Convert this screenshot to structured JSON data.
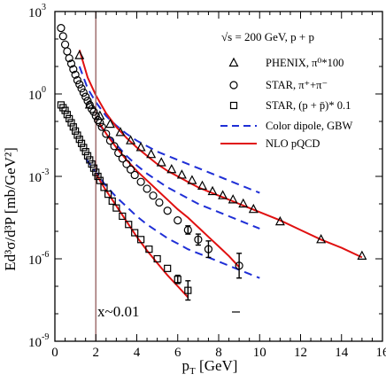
{
  "chart_data": {
    "type": "scatter",
    "xlabel_main": "p",
    "xlabel_sub": "T",
    "xlabel_unit": " [GeV]",
    "ylabel": "Ed³σ/d³P [mb/GeV²]",
    "xlim": [
      0,
      16
    ],
    "ylim_log10": [
      -9,
      3
    ],
    "x_ticks": [
      "0",
      "2",
      "4",
      "6",
      "8",
      "10",
      "12",
      "14",
      "16"
    ],
    "y_ticks": [
      {
        "exp": -9,
        "base": "10",
        "sup": "-9"
      },
      {
        "exp": -6,
        "base": "10",
        "sup": "-6"
      },
      {
        "exp": -3,
        "base": "10",
        "sup": "-3"
      },
      {
        "exp": 0,
        "base": "10",
        "sup": "0"
      },
      {
        "exp": 3,
        "base": "10",
        "sup": "3"
      }
    ],
    "scale": "log-y",
    "annotations": {
      "energy": "√s = 200 GeV, p + p",
      "xregion": "x~0.01",
      "vline_x": 2
    },
    "colors": {
      "dipole": "#1f2fd6",
      "nlo": "#e01010",
      "vline": "#a07070",
      "axis": "#000000"
    },
    "legend": [
      {
        "marker": "triangle",
        "label": "PHENIX, π⁰*100"
      },
      {
        "marker": "circle",
        "label": "STAR, π⁺+π⁻"
      },
      {
        "marker": "square",
        "label": "STAR, (p + p̄)* 0.1"
      },
      {
        "line": "dashed-blue",
        "label": "Color dipole, GBW"
      },
      {
        "line": "solid-red",
        "label": "NLO pQCD"
      }
    ],
    "series": [
      {
        "name": "PHENIX, π⁰*100",
        "marker": "triangle",
        "x": [
          1.2,
          1.7,
          2.2,
          2.7,
          3.2,
          3.7,
          4.2,
          4.7,
          5.2,
          5.7,
          6.2,
          6.7,
          7.2,
          7.7,
          8.2,
          8.7,
          9.2,
          9.7,
          11.0,
          13.0,
          15.0
        ],
        "y": [
          1.4,
          -0.4,
          -0.8,
          -1.1,
          -1.4,
          -1.7,
          -1.95,
          -2.2,
          -2.5,
          -2.75,
          -2.95,
          -3.15,
          -3.35,
          -3.55,
          -3.7,
          -3.85,
          -4.0,
          -4.2,
          -4.65,
          -5.3,
          -5.9
        ],
        "yerr": []
      },
      {
        "name": "STAR, π⁺+π⁻",
        "marker": "circle",
        "x": [
          0.3,
          0.4,
          0.5,
          0.6,
          0.7,
          0.8,
          0.9,
          1.0,
          1.1,
          1.2,
          1.3,
          1.4,
          1.5,
          1.6,
          1.7,
          1.8,
          1.9,
          2.0,
          2.1,
          2.2,
          2.3,
          2.5,
          2.7,
          2.9,
          3.1,
          3.3,
          3.5,
          3.7,
          3.9,
          4.2,
          4.5,
          4.8,
          5.1,
          5.5,
          6.0,
          6.5,
          7.0,
          7.5,
          9.0
        ],
        "y": [
          2.4,
          2.1,
          1.8,
          1.55,
          1.3,
          1.1,
          0.9,
          0.7,
          0.5,
          0.35,
          0.2,
          0.05,
          -0.1,
          -0.25,
          -0.4,
          -0.55,
          -0.65,
          -0.8,
          -0.95,
          -1.05,
          -1.2,
          -1.45,
          -1.7,
          -1.9,
          -2.15,
          -2.35,
          -2.55,
          -2.75,
          -2.95,
          -3.2,
          -3.45,
          -3.7,
          -3.95,
          -4.25,
          -4.6,
          -4.95,
          -5.3,
          -5.65,
          -6.25
        ],
        "yerr": [
          0,
          0,
          0,
          0,
          0,
          0,
          0,
          0,
          0,
          0,
          0,
          0,
          0,
          0,
          0,
          0,
          0,
          0,
          0,
          0,
          0,
          0,
          0,
          0,
          0,
          0,
          0,
          0,
          0,
          0,
          0,
          0,
          0,
          0,
          0,
          0.15,
          0.2,
          0.3,
          0.45
        ]
      },
      {
        "name": "STAR, (p + p̄)* 0.1",
        "marker": "square",
        "x": [
          0.3,
          0.4,
          0.5,
          0.6,
          0.7,
          0.8,
          0.9,
          1.0,
          1.1,
          1.2,
          1.3,
          1.4,
          1.5,
          1.6,
          1.7,
          1.8,
          1.9,
          2.0,
          2.1,
          2.2,
          2.4,
          2.6,
          2.8,
          3.0,
          3.3,
          3.6,
          3.9,
          4.2,
          4.6,
          5.0,
          5.5,
          6.0,
          6.5
        ],
        "y": [
          -0.4,
          -0.5,
          -0.6,
          -0.75,
          -0.9,
          -1.05,
          -1.2,
          -1.35,
          -1.5,
          -1.65,
          -1.8,
          -1.95,
          -2.1,
          -2.25,
          -2.4,
          -2.55,
          -2.7,
          -2.85,
          -3.0,
          -3.15,
          -3.4,
          -3.65,
          -3.9,
          -4.15,
          -4.45,
          -4.75,
          -5.05,
          -5.3,
          -5.65,
          -6.0,
          -6.35,
          -6.75,
          -7.15
        ],
        "yerr": [
          0,
          0,
          0,
          0,
          0,
          0,
          0,
          0,
          0,
          0,
          0,
          0,
          0,
          0,
          0,
          0,
          0,
          0,
          0,
          0,
          0,
          0,
          0,
          0,
          0,
          0,
          0,
          0,
          0,
          0,
          0,
          0.15,
          0.35
        ]
      }
    ],
    "curves": {
      "nlo": [
        {
          "x": [
            1.2,
            1.6,
            2.0,
            2.5,
            3.0,
            3.5,
            4.0,
            4.5,
            5.0,
            5.5,
            6.0,
            6.5,
            7.0,
            7.5,
            8.0,
            8.5,
            9.0,
            9.5,
            10,
            11,
            12,
            13,
            14,
            15
          ],
          "y": [
            1.6,
            0.6,
            -0.05,
            -0.7,
            -1.2,
            -1.6,
            -1.95,
            -2.25,
            -2.55,
            -2.8,
            -3.0,
            -3.2,
            -3.4,
            -3.55,
            -3.7,
            -3.85,
            -4.0,
            -4.15,
            -4.3,
            -4.6,
            -4.95,
            -5.3,
            -5.6,
            -5.95
          ]
        },
        {
          "x": [
            2.2,
            2.6,
            3.0,
            3.5,
            4.0,
            4.5,
            5.0,
            5.5,
            6.0,
            6.5,
            7.0,
            7.5,
            8.0,
            8.5,
            9.0
          ],
          "y": [
            -1.1,
            -1.55,
            -1.95,
            -2.4,
            -2.8,
            -3.15,
            -3.5,
            -3.85,
            -4.2,
            -4.5,
            -4.85,
            -5.2,
            -5.55,
            -5.9,
            -6.3
          ]
        },
        {
          "x": [
            2.0,
            2.4,
            2.8,
            3.2,
            3.6,
            4.0,
            4.5,
            5.0,
            5.5,
            6.0,
            6.5
          ],
          "y": [
            -2.9,
            -3.4,
            -3.85,
            -4.3,
            -4.75,
            -5.2,
            -5.7,
            -6.15,
            -6.6,
            -7.0,
            -7.4
          ]
        }
      ],
      "dipole": [
        {
          "x": [
            1.2,
            1.6,
            2.0,
            2.5,
            3.0,
            3.5,
            4.0,
            4.5,
            5.0,
            5.5,
            6.0,
            6.5,
            7.0,
            7.5,
            8.0,
            8.5,
            9.0,
            9.5,
            10
          ],
          "y": [
            1.0,
            0.2,
            -0.3,
            -0.8,
            -1.15,
            -1.45,
            -1.7,
            -1.9,
            -2.1,
            -2.25,
            -2.4,
            -2.55,
            -2.7,
            -2.85,
            -3.0,
            -3.15,
            -3.3,
            -3.45,
            -3.6
          ]
        },
        {
          "x": [
            2.2,
            2.6,
            3.0,
            3.5,
            4.0,
            4.5,
            5.0,
            5.5,
            6.0,
            6.5,
            7.0,
            7.5,
            8.0,
            8.5,
            9.0,
            9.5,
            10
          ],
          "y": [
            -1.15,
            -1.5,
            -1.85,
            -2.25,
            -2.6,
            -2.9,
            -3.15,
            -3.4,
            -3.6,
            -3.8,
            -4.0,
            -4.15,
            -4.3,
            -4.45,
            -4.6,
            -4.75,
            -4.9
          ]
        },
        {
          "x": [
            1.5,
            2.0,
            2.5,
            3.0,
            3.5,
            4.0,
            4.5,
            5.0,
            5.5,
            6.0,
            6.5,
            7.0,
            7.5,
            8.0,
            8.5,
            9.0,
            9.5,
            10
          ],
          "y": [
            -2.35,
            -2.85,
            -3.35,
            -3.75,
            -4.1,
            -4.45,
            -4.75,
            -5.0,
            -5.25,
            -5.45,
            -5.65,
            -5.8,
            -5.95,
            -6.1,
            -6.25,
            -6.4,
            -6.55,
            -6.7
          ]
        }
      ]
    }
  }
}
